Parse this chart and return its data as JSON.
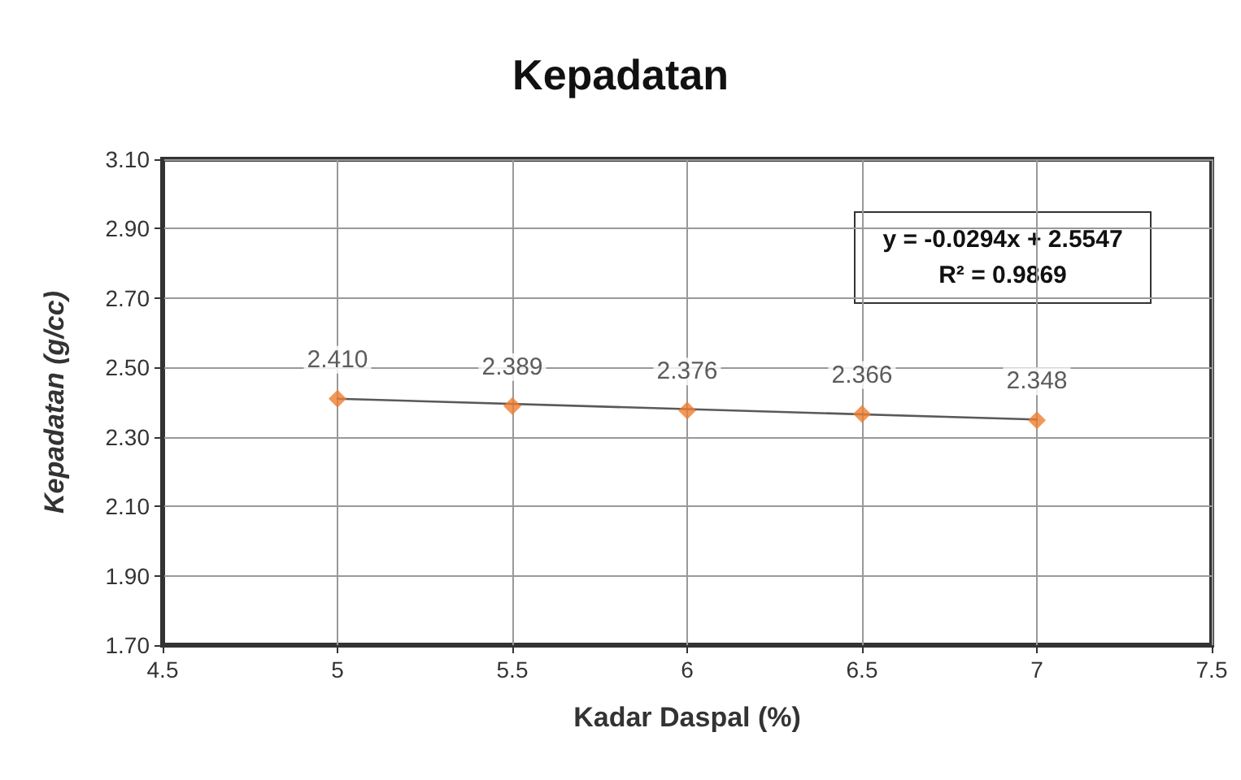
{
  "chart_data": {
    "type": "scatter",
    "title": "Kepadatan",
    "xlabel": "Kadar Daspal (%)",
    "ylabel": "Kepadatan (g/cc)",
    "annotations": [
      "y = -0.0294x + 2.5547",
      "R² = 0.9869"
    ],
    "series": [
      {
        "color": "#ed7d31",
        "marker": "diamond",
        "x": [
          5,
          5.5,
          6,
          6.5,
          7
        ],
        "values": [
          2.41,
          2.389,
          2.376,
          2.366,
          2.348
        ],
        "value_labels": [
          "2.410",
          "2.389",
          "2.376",
          "2.366",
          "2.348"
        ]
      },
      {
        "type": "line",
        "color": "#595959",
        "marker": "none",
        "x": [
          5,
          7
        ],
        "values": [
          2.41,
          2.35
        ]
      }
    ],
    "xlim": [
      4.5,
      7.5
    ],
    "xticks": [
      4.5,
      5,
      5.5,
      6,
      6.5,
      7,
      7.5
    ],
    "ylim": [
      1.7,
      3.1
    ],
    "yticks": [
      {
        "value": 1.7,
        "label": "1.70"
      },
      {
        "value": 1.9,
        "label": "1.90"
      },
      {
        "value": 2.1,
        "label": "2.10"
      },
      {
        "value": 2.3,
        "label": "2.30"
      },
      {
        "value": 2.5,
        "label": "2.50"
      },
      {
        "value": 2.7,
        "label": "2.70"
      },
      {
        "value": 2.9,
        "label": "2.90"
      },
      {
        "value": 3.1,
        "label": "3.10"
      }
    ],
    "grid": true
  }
}
